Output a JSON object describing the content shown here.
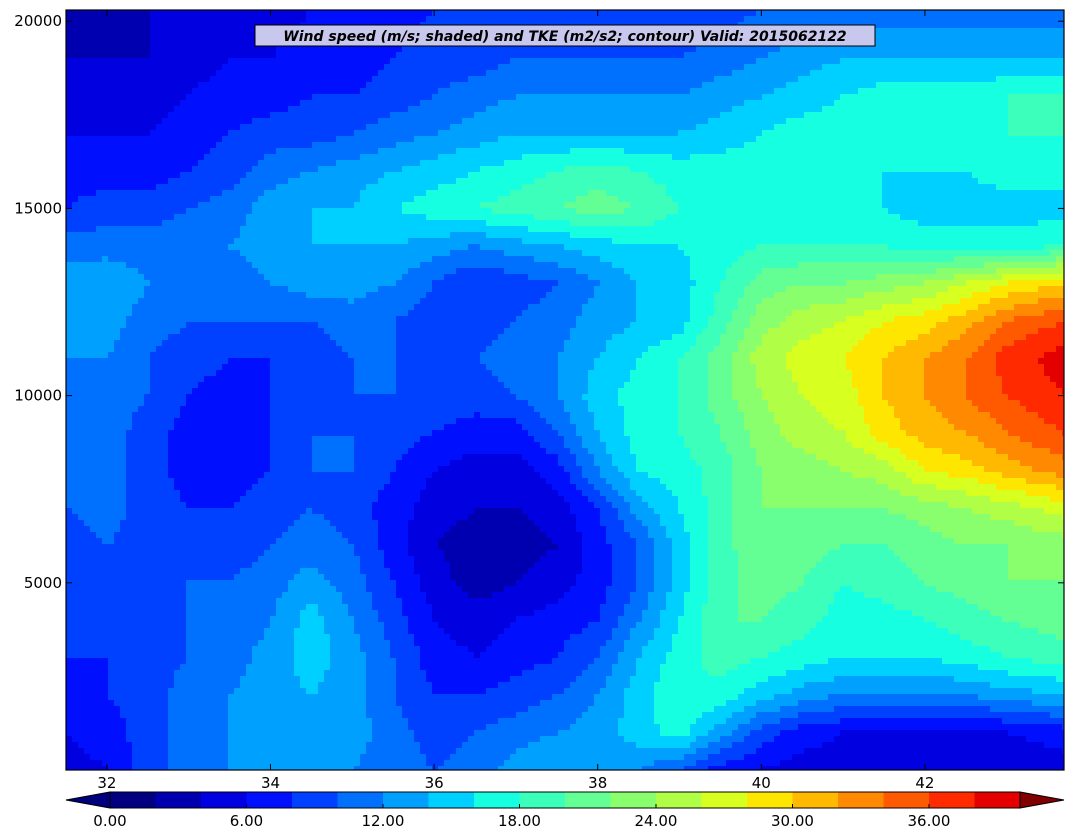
{
  "chart_data": {
    "type": "heatmap",
    "title": "Wind speed (m/s; shaded) and TKE (m2/s2; contour) Valid: 2015062122",
    "xlabel": "",
    "ylabel": "",
    "xlim": [
      31.5,
      43.7
    ],
    "ylim": [
      0,
      20300
    ],
    "x_ticks": [
      32,
      34,
      36,
      38,
      40,
      42
    ],
    "x_tick_labels": [
      "32",
      "34",
      "36",
      "38",
      "40",
      "42"
    ],
    "y_ticks": [
      5000,
      10000,
      15000,
      20000
    ],
    "y_tick_labels": [
      "5000",
      "10000",
      "15000",
      "20000"
    ],
    "grid": false,
    "colorbar": {
      "orientation": "horizontal",
      "extend": "both",
      "levels": [
        0,
        2,
        4,
        6,
        8,
        10,
        12,
        14,
        16,
        18,
        20,
        22,
        24,
        26,
        28,
        30,
        32,
        34,
        36,
        38,
        40
      ],
      "tick_values": [
        0,
        6,
        12,
        18,
        24,
        30,
        36
      ],
      "tick_labels": [
        "0.00",
        "6.00",
        "12.00",
        "18.00",
        "24.00",
        "30.00",
        "36.00"
      ],
      "colors": [
        "#000080",
        "#0000b0",
        "#0000e0",
        "#0010ff",
        "#0040ff",
        "#0070ff",
        "#00a0ff",
        "#00d0ff",
        "#16ffe1",
        "#3cffbb",
        "#63ff94",
        "#8aff6d",
        "#b0ff46",
        "#d7ff1f",
        "#ffe600",
        "#ffb900",
        "#ff8900",
        "#ff5a00",
        "#ff2a00",
        "#e50000",
        "#a00000"
      ],
      "under_color": "#00007f",
      "over_color": "#800000"
    },
    "field": {
      "x": [
        31.5,
        32.0,
        32.5,
        33.0,
        33.5,
        34.0,
        34.5,
        35.0,
        35.5,
        36.0,
        36.5,
        37.0,
        37.5,
        38.0,
        38.5,
        39.0,
        39.5,
        40.0,
        40.5,
        41.0,
        41.5,
        42.0,
        42.5,
        43.0,
        43.7
      ],
      "y": [
        0,
        1000,
        2000,
        3000,
        4000,
        5000,
        6000,
        7000,
        8000,
        9000,
        10000,
        11000,
        12000,
        13000,
        14000,
        15000,
        16000,
        17000,
        18000,
        19000,
        20300
      ],
      "values": [
        [
          5,
          6,
          9,
          11,
          12,
          13,
          13,
          12,
          11,
          10,
          11,
          13,
          14,
          13,
          12,
          10,
          7,
          6,
          5,
          5,
          5,
          4,
          4,
          4,
          5
        ],
        [
          6,
          7,
          9,
          11,
          12,
          13,
          14,
          13,
          11,
          9,
          10,
          11,
          12,
          13,
          15,
          17,
          13,
          9,
          7,
          6,
          6,
          5,
          5,
          6,
          7
        ],
        [
          7,
          8,
          9,
          11,
          12,
          13,
          14,
          13,
          10,
          8,
          8,
          9,
          10,
          12,
          15,
          18,
          17,
          15,
          13,
          12,
          12,
          12,
          12,
          13,
          14
        ],
        [
          8,
          8,
          9,
          10,
          11,
          13,
          15,
          13,
          10,
          7,
          6,
          7,
          8,
          10,
          14,
          17,
          19,
          18,
          17,
          16,
          16,
          16,
          17,
          18,
          19
        ],
        [
          8,
          8,
          9,
          10,
          10,
          12,
          15,
          12,
          9,
          6,
          5,
          6,
          7,
          8,
          12,
          16,
          20,
          20,
          19,
          17,
          17,
          18,
          19,
          20,
          21
        ],
        [
          9,
          9,
          9,
          10,
          10,
          11,
          13,
          11,
          8,
          5,
          3,
          4,
          5,
          7,
          10,
          15,
          19,
          21,
          20,
          18,
          19,
          20,
          21,
          22,
          22
        ],
        [
          9,
          10,
          9,
          9,
          9,
          10,
          11,
          10,
          7,
          4,
          3,
          3,
          4,
          7,
          10,
          15,
          19,
          22,
          21,
          20,
          20,
          21,
          22,
          22,
          23
        ],
        [
          10,
          11,
          9,
          8,
          8,
          9,
          10,
          9,
          7,
          5,
          4,
          4,
          5,
          8,
          13,
          16,
          19,
          22,
          22,
          22,
          22,
          23,
          24,
          25,
          27
        ],
        [
          10,
          11,
          9,
          7,
          7,
          8,
          10,
          10,
          8,
          6,
          5,
          5,
          7,
          12,
          16,
          17,
          19,
          22,
          23,
          24,
          25,
          28,
          29,
          31,
          33
        ],
        [
          11,
          11,
          9,
          7,
          7,
          8,
          10,
          10,
          9,
          8,
          7,
          7,
          10,
          14,
          17,
          18,
          20,
          23,
          25,
          26,
          29,
          31,
          32,
          34,
          36
        ],
        [
          11,
          11,
          10,
          8,
          7,
          8,
          9,
          10,
          10,
          9,
          9,
          10,
          12,
          15,
          17,
          18,
          21,
          24,
          26,
          27,
          30,
          32,
          34,
          36,
          38
        ],
        [
          12,
          12,
          10,
          9,
          8,
          8,
          9,
          10,
          10,
          10,
          10,
          11,
          12,
          14,
          16,
          18,
          21,
          25,
          27,
          28,
          30,
          32,
          34,
          37,
          39
        ],
        [
          12,
          13,
          11,
          10,
          10,
          10,
          10,
          11,
          10,
          9,
          9,
          10,
          11,
          13,
          14,
          15,
          19,
          23,
          25,
          26,
          28,
          29,
          31,
          34,
          36
        ],
        [
          13,
          14,
          12,
          11,
          11,
          12,
          13,
          13,
          12,
          10,
          8,
          9,
          10,
          12,
          14,
          15,
          18,
          21,
          22,
          22,
          23,
          24,
          26,
          28,
          30
        ],
        [
          11,
          11,
          11,
          11,
          12,
          13,
          14,
          14,
          14,
          13,
          12,
          13,
          14,
          15,
          16,
          16,
          17,
          18,
          18,
          18,
          18,
          17,
          17,
          17,
          18
        ],
        [
          8,
          9,
          9,
          10,
          11,
          13,
          14,
          14,
          16,
          17,
          18,
          19,
          20,
          21,
          20,
          18,
          17,
          18,
          17,
          16,
          16,
          15,
          15,
          15,
          15
        ],
        [
          7,
          7,
          7,
          8,
          9,
          11,
          12,
          13,
          14,
          15,
          16,
          17,
          18,
          19,
          18,
          17,
          17,
          17,
          17,
          16,
          16,
          16,
          16,
          17,
          17
        ],
        [
          6,
          6,
          6,
          7,
          8,
          9,
          9,
          10,
          11,
          12,
          13,
          14,
          14,
          14,
          14,
          14,
          15,
          16,
          17,
          17,
          17,
          17,
          17,
          18,
          18
        ],
        [
          5,
          5,
          5,
          6,
          7,
          7,
          8,
          8,
          9,
          10,
          11,
          12,
          12,
          12,
          12,
          12,
          13,
          14,
          15,
          16,
          17,
          17,
          17,
          18,
          18
        ],
        [
          4,
          4,
          4,
          5,
          6,
          6,
          7,
          7,
          8,
          9,
          9,
          10,
          10,
          10,
          10,
          10,
          11,
          12,
          13,
          14,
          14,
          14,
          14,
          14,
          14
        ],
        [
          3,
          3,
          4,
          4,
          5,
          5,
          6,
          6,
          7,
          8,
          8,
          8,
          8,
          8,
          8,
          8,
          9,
          10,
          10,
          11,
          11,
          11,
          11,
          11,
          11
        ]
      ]
    }
  }
}
